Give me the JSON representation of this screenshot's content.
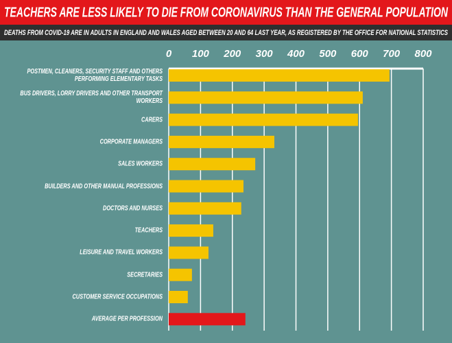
{
  "chart_data": {
    "type": "bar",
    "orientation": "horizontal",
    "title": "TEACHERS ARE LESS LIKELY TO DIE FROM CORONAVIRUS THAN THE GENERAL POPULATION",
    "subtitle": "DEATHS FROM COVID-19 ARE IN ADULTS IN ENGLAND AND WALES AGED BETWEEN 20 AND 64 LAST YEAR, AS REGISTERED BY THE OFFICE FOR NATIONAL STATISTICS",
    "categories": [
      "POSTMEN, CLEANERS, SECURITY STAFF AND OTHERS PERFORMING ELEMENTARY TASKS",
      "BUS DRIVERS, LORRY DRIVERS AND OTHER TRANSPORT WORKERS",
      "CARERS",
      "CORPORATE MANAGERS",
      "SALES WORKERS",
      "BUILDERS AND OTHER MANUAL PROFESSIONS",
      "DOCTORS AND NURSES",
      "TEACHERS",
      "LEISURE AND TRAVEL WORKERS",
      "SECRETARIES",
      "CUSTOMER SERVICE OCCUPATIONS",
      "AVERAGE PER PROFESSION"
    ],
    "values": [
      694,
      610,
      595,
      332,
      272,
      235,
      228,
      140,
      125,
      73,
      60,
      241
    ],
    "colors": [
      "#f5c400",
      "#f5c400",
      "#f5c400",
      "#f5c400",
      "#f5c400",
      "#f5c400",
      "#f5c400",
      "#f5c400",
      "#f5c400",
      "#f5c400",
      "#f5c400",
      "#e3171b"
    ],
    "xlim": [
      0,
      800
    ],
    "xticks": [
      0,
      100,
      200,
      300,
      400,
      500,
      600,
      700,
      800
    ],
    "grid": true
  }
}
